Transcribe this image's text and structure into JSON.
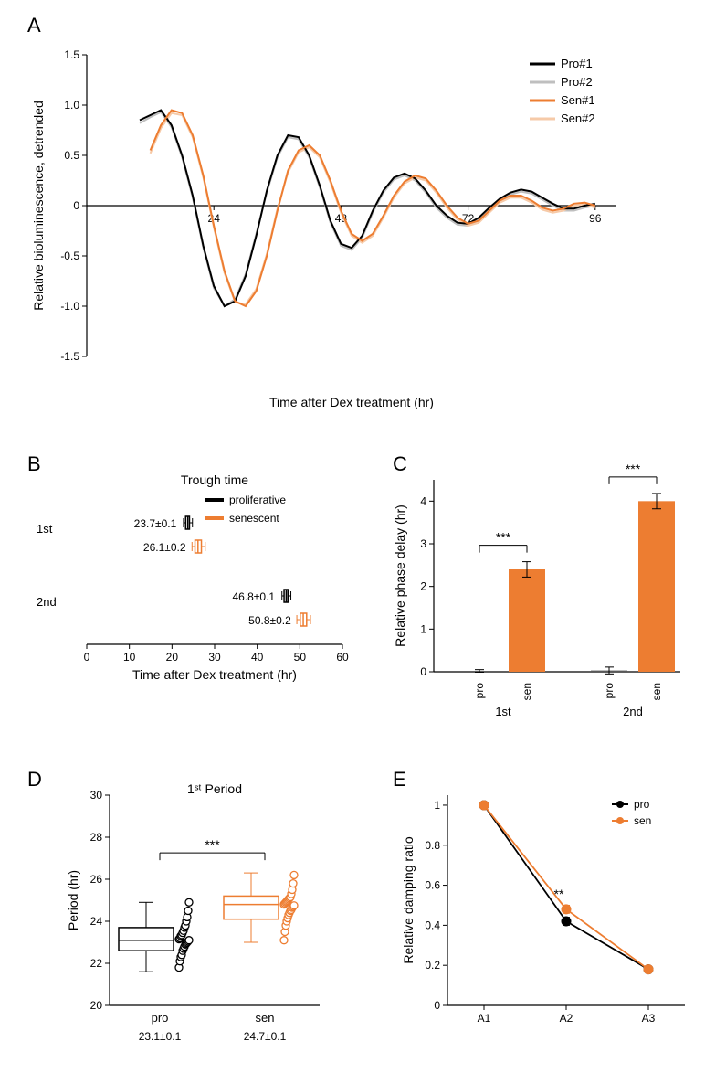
{
  "panelA": {
    "label": "A",
    "type": "line",
    "xlabel": "Time after Dex treatment (hr)",
    "ylabel": "Relative bioluminescence, detrended",
    "xlim": [
      0,
      100
    ],
    "ylim": [
      -1.5,
      1.5
    ],
    "xticks": [
      24,
      48,
      72,
      96
    ],
    "yticks": [
      -1.5,
      -1.0,
      -0.5,
      0,
      0.5,
      1.0,
      1.5
    ],
    "ytick_labels": [
      "-1.5",
      "-1.0",
      "-0.5",
      "0",
      "0.5",
      "1.0",
      "1.5"
    ],
    "axis_fontsize": 14,
    "tick_fontsize": 12,
    "label_fontsize": 14,
    "axis_color": "#000000",
    "background": "#ffffff",
    "legend": [
      {
        "name": "Pro#1",
        "color": "#000000"
      },
      {
        "name": "Pro#2",
        "color": "#bfbfbf"
      },
      {
        "name": "Sen#1",
        "color": "#ed7d31"
      },
      {
        "name": "Sen#2",
        "color": "#f6caa8"
      }
    ],
    "series": {
      "pro1": {
        "color": "#000000",
        "line_width": 2,
        "x": [
          10,
          12,
          14,
          16,
          18,
          20,
          22,
          24,
          26,
          28,
          30,
          32,
          34,
          36,
          38,
          40,
          42,
          44,
          46,
          48,
          50,
          52,
          54,
          56,
          58,
          60,
          62,
          64,
          66,
          68,
          70,
          72,
          74,
          76,
          78,
          80,
          82,
          84,
          86,
          88,
          90,
          92,
          94,
          96
        ],
        "y": [
          0.85,
          0.9,
          0.95,
          0.8,
          0.5,
          0.1,
          -0.4,
          -0.8,
          -1.0,
          -0.95,
          -0.7,
          -0.3,
          0.15,
          0.5,
          0.7,
          0.68,
          0.5,
          0.2,
          -0.15,
          -0.38,
          -0.42,
          -0.3,
          -0.05,
          0.15,
          0.28,
          0.32,
          0.27,
          0.15,
          0.0,
          -0.1,
          -0.17,
          -0.18,
          -0.12,
          -0.02,
          0.07,
          0.13,
          0.16,
          0.14,
          0.08,
          0.02,
          -0.03,
          -0.03,
          0.0,
          0.02
        ]
      },
      "pro2": {
        "color": "#bfbfbf",
        "line_width": 2,
        "x": [
          10,
          12,
          14,
          16,
          18,
          20,
          22,
          24,
          26,
          28,
          30,
          32,
          34,
          36,
          38,
          40,
          42,
          44,
          46,
          48,
          50,
          52,
          54,
          56,
          58,
          60,
          62,
          64,
          66,
          68,
          70,
          72,
          74,
          76,
          78,
          80,
          82,
          84,
          86,
          88,
          90,
          92,
          94,
          96
        ],
        "y": [
          0.82,
          0.88,
          0.93,
          0.78,
          0.48,
          0.08,
          -0.42,
          -0.82,
          -1.0,
          -0.93,
          -0.68,
          -0.28,
          0.13,
          0.48,
          0.68,
          0.66,
          0.48,
          0.18,
          -0.17,
          -0.4,
          -0.44,
          -0.32,
          -0.07,
          0.13,
          0.26,
          0.3,
          0.25,
          0.13,
          -0.02,
          -0.12,
          -0.19,
          -0.2,
          -0.14,
          -0.04,
          0.05,
          0.11,
          0.14,
          0.12,
          0.06,
          0.0,
          -0.05,
          -0.05,
          -0.02,
          0.0
        ]
      },
      "sen1": {
        "color": "#ed7d31",
        "line_width": 2,
        "x": [
          12,
          14,
          16,
          18,
          20,
          22,
          24,
          26,
          28,
          30,
          32,
          34,
          36,
          38,
          40,
          42,
          44,
          46,
          48,
          50,
          52,
          54,
          56,
          58,
          60,
          62,
          64,
          66,
          68,
          70,
          72,
          74,
          76,
          78,
          80,
          82,
          84,
          86,
          88,
          90,
          92,
          94,
          96
        ],
        "y": [
          0.55,
          0.8,
          0.95,
          0.92,
          0.7,
          0.3,
          -0.2,
          -0.65,
          -0.95,
          -1.0,
          -0.85,
          -0.5,
          -0.05,
          0.35,
          0.55,
          0.6,
          0.5,
          0.25,
          -0.05,
          -0.28,
          -0.35,
          -0.28,
          -0.1,
          0.1,
          0.24,
          0.3,
          0.27,
          0.15,
          0.0,
          -0.12,
          -0.18,
          -0.15,
          -0.05,
          0.05,
          0.1,
          0.1,
          0.05,
          -0.02,
          -0.05,
          -0.03,
          0.02,
          0.03,
          0.0
        ]
      },
      "sen2": {
        "color": "#f6caa8",
        "line_width": 2,
        "x": [
          12,
          14,
          16,
          18,
          20,
          22,
          24,
          26,
          28,
          30,
          32,
          34,
          36,
          38,
          40,
          42,
          44,
          46,
          48,
          50,
          52,
          54,
          56,
          58,
          60,
          62,
          64,
          66,
          68,
          70,
          72,
          74,
          76,
          78,
          80,
          82,
          84,
          86,
          88,
          90,
          92,
          94,
          96
        ],
        "y": [
          0.52,
          0.77,
          0.92,
          0.9,
          0.68,
          0.28,
          -0.22,
          -0.67,
          -0.96,
          -0.98,
          -0.83,
          -0.48,
          -0.03,
          0.33,
          0.53,
          0.58,
          0.48,
          0.23,
          -0.07,
          -0.3,
          -0.37,
          -0.3,
          -0.12,
          0.08,
          0.22,
          0.28,
          0.25,
          0.13,
          -0.02,
          -0.14,
          -0.2,
          -0.17,
          -0.07,
          0.03,
          0.08,
          0.08,
          0.03,
          -0.04,
          -0.07,
          -0.05,
          0.0,
          0.01,
          -0.02
        ]
      }
    }
  },
  "panelB": {
    "label": "B",
    "type": "boxplot-horizontal",
    "title": "Trough time",
    "xlabel": "Time after Dex treatment (hr)",
    "xlim": [
      0,
      60
    ],
    "xticks": [
      0,
      10,
      20,
      30,
      40,
      50,
      60
    ],
    "row_labels": [
      "1st",
      "2nd"
    ],
    "legend": [
      {
        "name": "proliferative",
        "color": "#000000"
      },
      {
        "name": "senescent",
        "color": "#ed7d31"
      }
    ],
    "boxes": [
      {
        "row": "1st",
        "group": "proliferative",
        "color": "#000000",
        "text": "23.7±0.1",
        "median": 23.7,
        "q1": 23.2,
        "q3": 24.1,
        "wlo": 22.7,
        "whi": 24.8
      },
      {
        "row": "1st",
        "group": "senescent",
        "color": "#ed7d31",
        "text": "26.1±0.2",
        "median": 26.1,
        "q1": 25.4,
        "q3": 26.9,
        "wlo": 24.7,
        "whi": 27.8
      },
      {
        "row": "2nd",
        "group": "proliferative",
        "color": "#000000",
        "text": "46.8±0.1",
        "median": 46.8,
        "q1": 46.3,
        "q3": 47.2,
        "wlo": 45.8,
        "whi": 47.9
      },
      {
        "row": "2nd",
        "group": "senescent",
        "color": "#ed7d31",
        "text": "50.8±0.2",
        "median": 50.8,
        "q1": 50.1,
        "q3": 51.6,
        "wlo": 49.3,
        "whi": 52.5
      }
    ],
    "background": "#ffffff"
  },
  "panelC": {
    "label": "C",
    "type": "bar",
    "ylabel": "Relative phase delay (hr)",
    "ylim": [
      0,
      4.5
    ],
    "yticks": [
      0,
      1,
      2,
      3,
      4
    ],
    "groups": [
      "1st",
      "2nd"
    ],
    "cats": [
      "pro",
      "sen"
    ],
    "colors": {
      "pro": "#595959",
      "sen": "#ed7d31"
    },
    "bars": [
      {
        "group": "1st",
        "cat": "pro",
        "value": 0.02,
        "err": 0.03
      },
      {
        "group": "1st",
        "cat": "sen",
        "value": 2.4,
        "err": 0.18
      },
      {
        "group": "2nd",
        "cat": "pro",
        "value": 0.03,
        "err": 0.08
      },
      {
        "group": "2nd",
        "cat": "sen",
        "value": 4.0,
        "err": 0.18
      }
    ],
    "sig": [
      {
        "from": "1st.pro",
        "to": "1st.sen",
        "label": "***"
      },
      {
        "from": "2nd.pro",
        "to": "2nd.sen",
        "label": "***"
      }
    ],
    "bar_width": 0.7
  },
  "panelD": {
    "label": "D",
    "type": "box-scatter-vertical",
    "title": "1ˢᵗ Period",
    "ylabel": "Period (hr)",
    "ylim": [
      20,
      30
    ],
    "yticks": [
      20,
      22,
      24,
      26,
      28,
      30
    ],
    "cats": [
      "pro",
      "sen"
    ],
    "colors": {
      "pro": "#000000",
      "sen": "#ed7d31"
    },
    "sig": {
      "from": "pro",
      "to": "sen",
      "label": "***"
    },
    "annotations": {
      "pro": "23.1±0.1",
      "sen": "24.7±0.1"
    },
    "boxes": {
      "pro": {
        "q1": 22.6,
        "median": 23.1,
        "q3": 23.7,
        "wlo": 21.6,
        "whi": 24.9
      },
      "sen": {
        "q1": 24.1,
        "median": 24.8,
        "q3": 25.2,
        "wlo": 23.0,
        "whi": 26.3
      }
    },
    "points": {
      "pro": [
        21.8,
        22.1,
        22.3,
        22.4,
        22.6,
        22.7,
        22.8,
        22.9,
        22.95,
        23.0,
        23.05,
        23.1,
        23.15,
        23.2,
        23.3,
        23.35,
        23.45,
        23.55,
        23.7,
        23.8,
        24.0,
        24.2,
        24.5,
        24.9
      ],
      "sen": [
        23.1,
        23.5,
        23.8,
        24.0,
        24.15,
        24.3,
        24.4,
        24.5,
        24.55,
        24.65,
        24.7,
        24.75,
        24.8,
        24.85,
        24.9,
        24.95,
        25.0,
        25.05,
        25.1,
        25.15,
        25.3,
        25.5,
        25.8,
        26.2
      ]
    },
    "marker_open": true,
    "marker_size": 4
  },
  "panelE": {
    "label": "E",
    "type": "line-markers",
    "ylabel": "Relative damping ratio",
    "ylim": [
      0,
      1.05
    ],
    "yticks": [
      0,
      0.2,
      0.4,
      0.6,
      0.8,
      1.0
    ],
    "ytick_labels": [
      "0",
      "0.2",
      "0.4",
      "0.6",
      "0.8",
      "1"
    ],
    "xticks": [
      "A1",
      "A2",
      "A3"
    ],
    "legend": [
      {
        "name": "pro",
        "color": "#000000"
      },
      {
        "name": "sen",
        "color": "#ed7d31"
      }
    ],
    "series": {
      "pro": {
        "color": "#000000",
        "y": [
          1.0,
          0.42,
          0.18
        ],
        "err": [
          0,
          0.02,
          0.015
        ]
      },
      "sen": {
        "color": "#ed7d31",
        "y": [
          1.0,
          0.48,
          0.18
        ],
        "err": [
          0,
          0.02,
          0.015
        ]
      }
    },
    "sig": [
      {
        "pos": "A2",
        "label": "**"
      }
    ],
    "marker_size": 5
  }
}
